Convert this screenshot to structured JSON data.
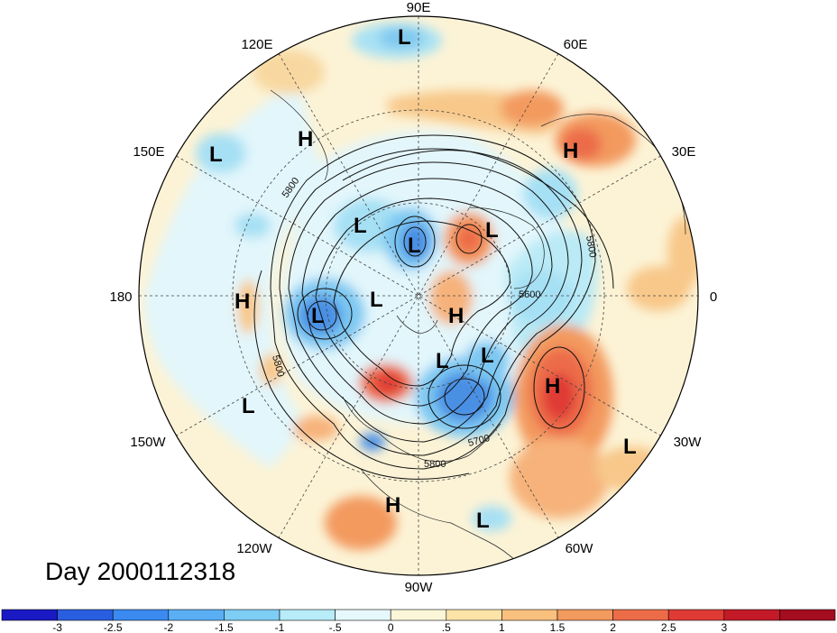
{
  "title": "Day 2000112318",
  "longitude_labels": [
    "90E",
    "60E",
    "30E",
    "0",
    "30W",
    "60W",
    "90W",
    "120W",
    "150W",
    "180",
    "150E",
    "120E"
  ],
  "pressure_centers": [
    {
      "type": "L"
    },
    {
      "type": "H"
    },
    {
      "type": "L"
    },
    {
      "type": "H"
    },
    {
      "type": "L"
    },
    {
      "type": "L"
    },
    {
      "type": "L"
    },
    {
      "type": "L"
    },
    {
      "type": "H"
    },
    {
      "type": "L"
    },
    {
      "type": "H"
    },
    {
      "type": "L"
    },
    {
      "type": "L"
    },
    {
      "type": "H"
    },
    {
      "type": "L"
    },
    {
      "type": "H"
    },
    {
      "type": "L"
    },
    {
      "type": "L"
    }
  ],
  "contour_labels": [
    "5800",
    "5800",
    "5800",
    "5700",
    "5800",
    "5600"
  ],
  "colorbar": {
    "colors": [
      "#1a1ac4",
      "#2a5ee0",
      "#3a8af0",
      "#5aaef4",
      "#7dcdf4",
      "#b7ecf8",
      "#e6f8fb",
      "#fcf6d8",
      "#fce3a8",
      "#f9c07e",
      "#f39a5e",
      "#ec6c48",
      "#e03a34",
      "#c41a28",
      "#a30d1f"
    ],
    "labels": [
      "-3",
      "-2.5",
      "-2",
      "-1.5",
      "-1",
      "-.5",
      "0",
      ".5",
      "1",
      "1.5",
      "2",
      "2.5",
      "3"
    ]
  }
}
